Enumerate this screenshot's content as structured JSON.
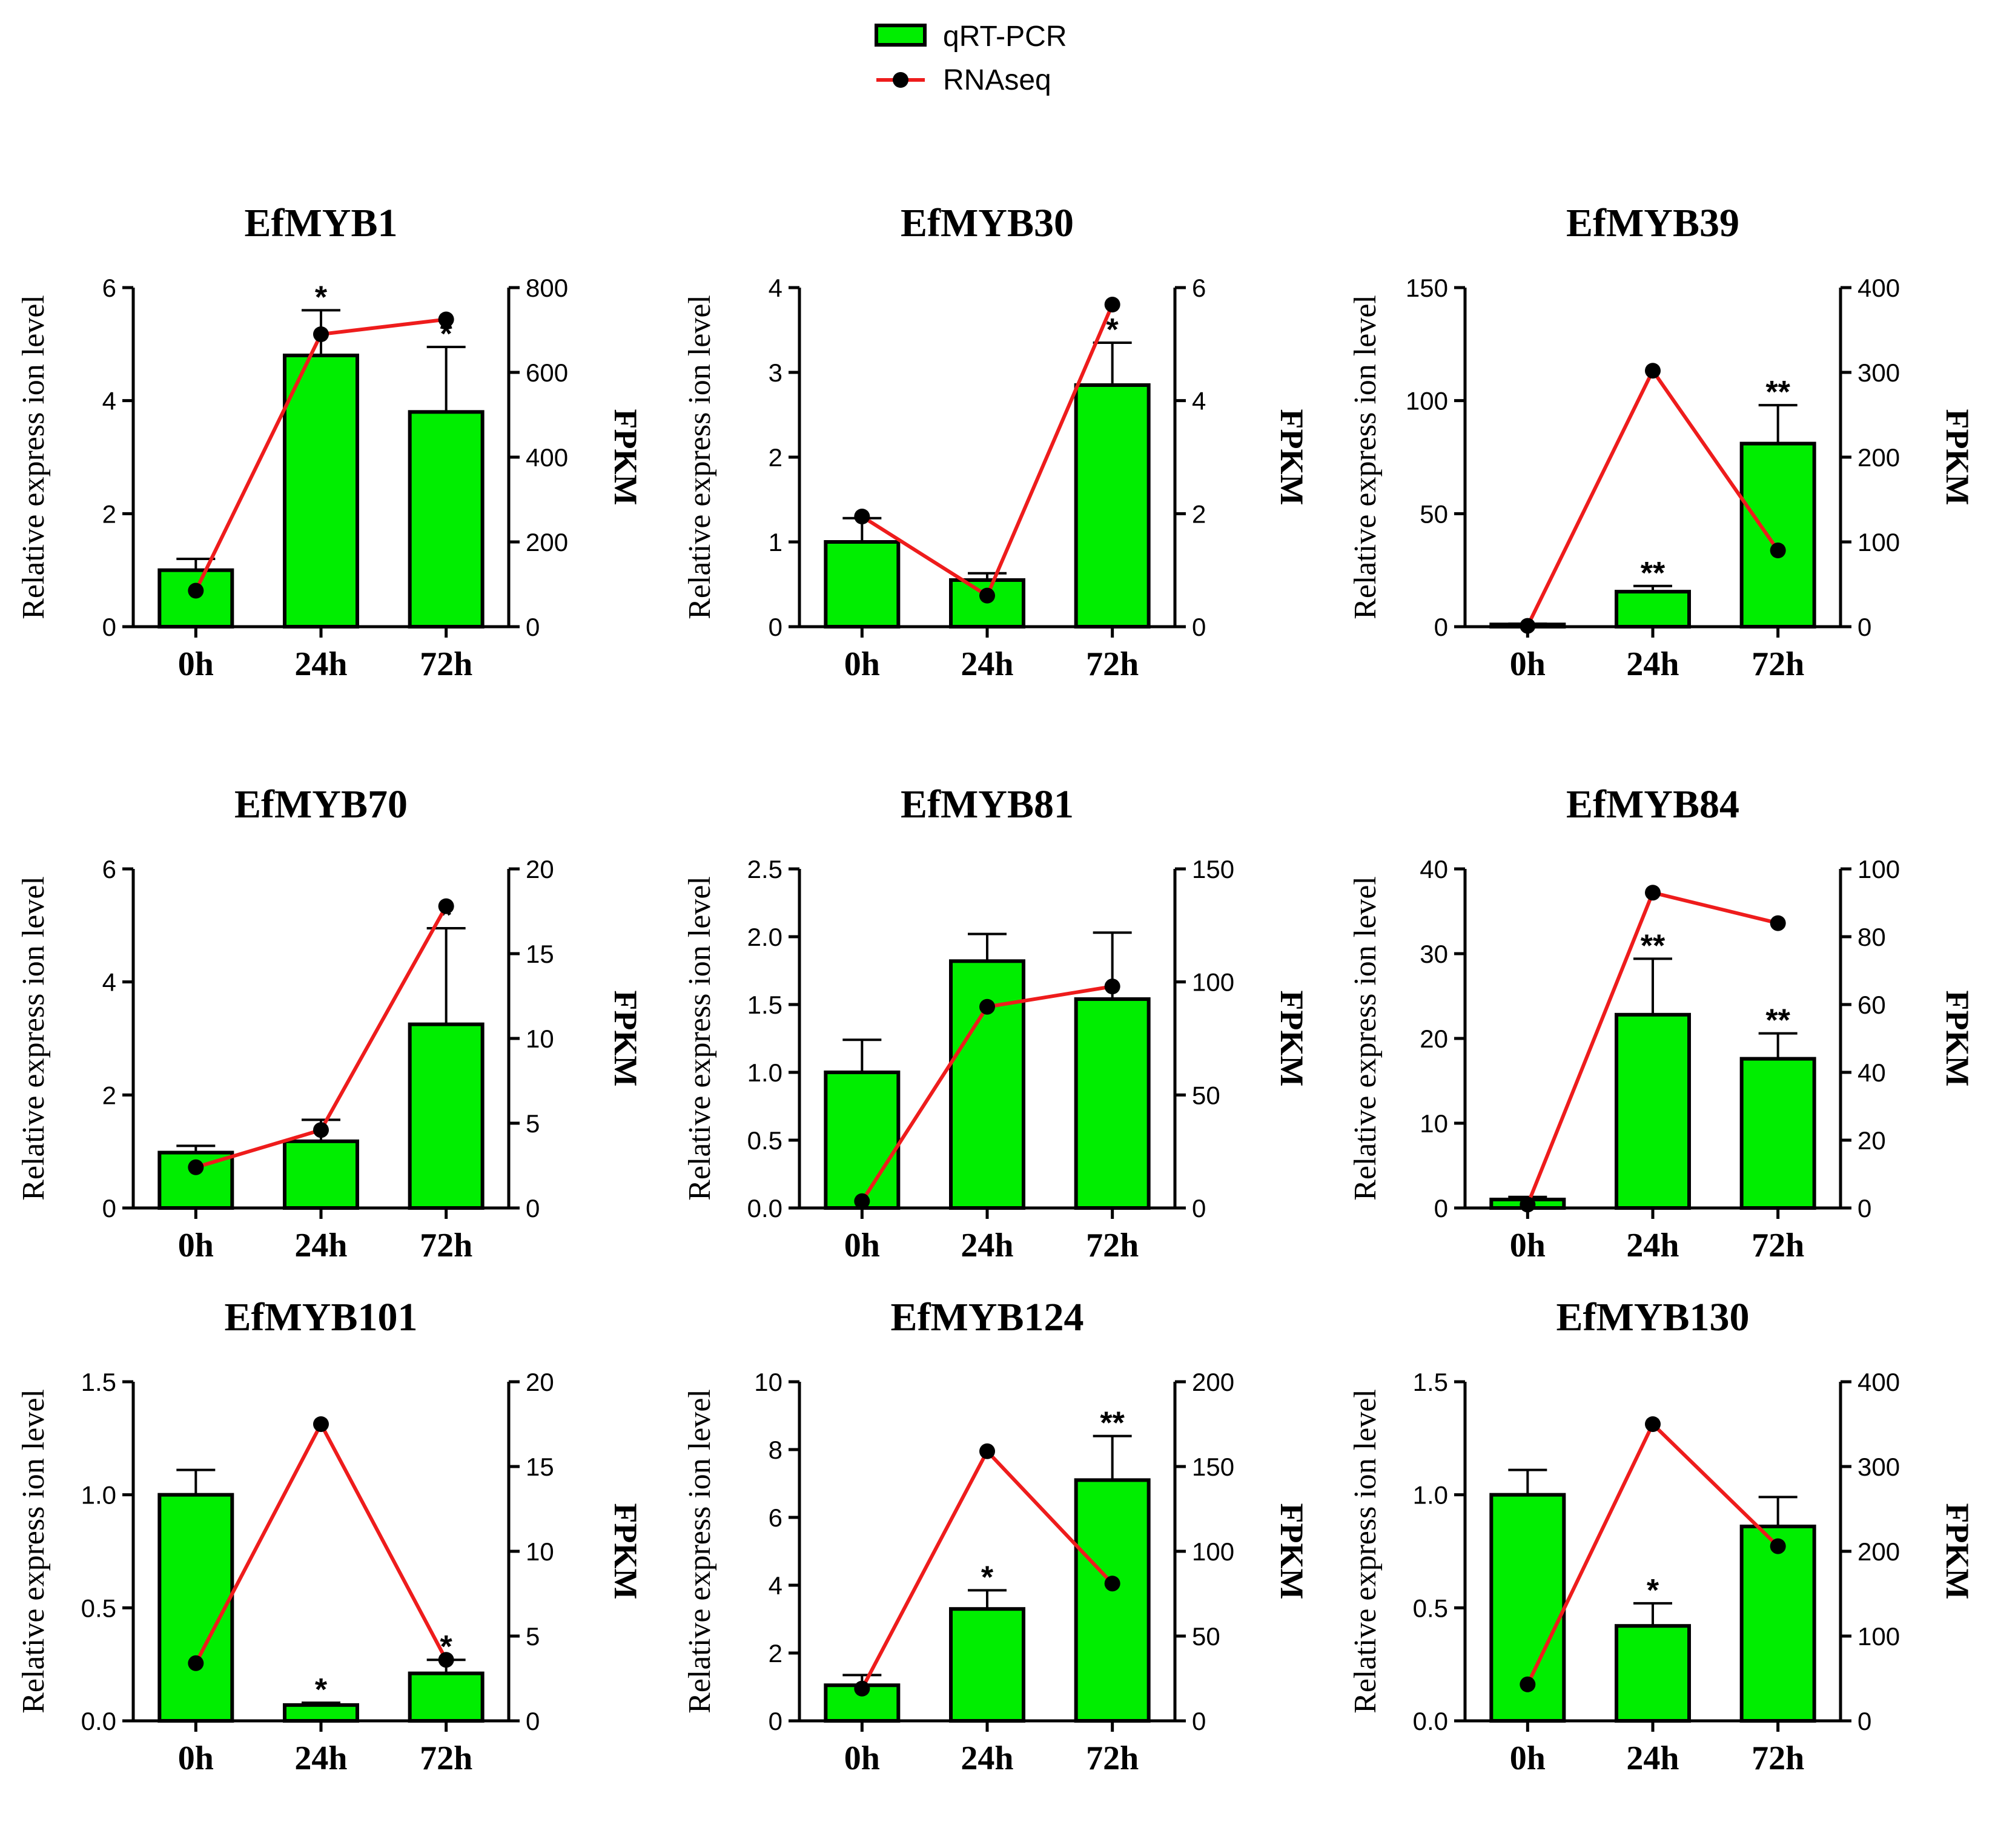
{
  "legend": {
    "bar_label": "qRT-PCR",
    "line_label": "RNAseq"
  },
  "colors": {
    "bar_fill": "#00ee00",
    "bar_stroke": "#000000",
    "line": "#ee1c1c",
    "marker": "#000000"
  },
  "chart_data": [
    {
      "type": "bar+line",
      "title": "EfMYB1",
      "categories": [
        "0h",
        "24h",
        "72h"
      ],
      "ylabel": "Relative express ion level",
      "y2label": "FPKM",
      "ylim": [
        0,
        6
      ],
      "yticks": [
        0,
        2,
        4,
        6
      ],
      "ytick_labels": [
        "0",
        "2",
        "4",
        "6"
      ],
      "y2lim": [
        0,
        800
      ],
      "y2ticks": [
        0,
        200,
        400,
        600,
        800
      ],
      "y2tick_labels": [
        "0",
        "200",
        "400",
        "600",
        "800"
      ],
      "series": [
        {
          "name": "qRT-PCR",
          "type": "bar",
          "values": [
            1.0,
            4.8,
            3.8
          ],
          "errors": [
            0.2,
            0.8,
            1.15
          ],
          "significance": [
            "",
            "*",
            "*"
          ]
        },
        {
          "name": "RNAseq",
          "type": "line",
          "axis": "right",
          "values": [
            85,
            690,
            725
          ]
        }
      ]
    },
    {
      "type": "bar+line",
      "title": "EfMYB30",
      "categories": [
        "0h",
        "24h",
        "72h"
      ],
      "ylabel": "Relative express ion level",
      "y2label": "FPKM",
      "ylim": [
        0,
        4
      ],
      "yticks": [
        0,
        1,
        2,
        3,
        4
      ],
      "ytick_labels": [
        "0",
        "1",
        "2",
        "3",
        "4"
      ],
      "y2lim": [
        0,
        6
      ],
      "y2ticks": [
        0,
        2,
        4,
        6
      ],
      "y2tick_labels": [
        "0",
        "2",
        "4",
        "6"
      ],
      "series": [
        {
          "name": "qRT-PCR",
          "type": "bar",
          "values": [
            1.0,
            0.55,
            2.85
          ],
          "errors": [
            0.28,
            0.08,
            0.5
          ],
          "significance": [
            "",
            "",
            "*"
          ]
        },
        {
          "name": "RNAseq",
          "type": "line",
          "axis": "right",
          "values": [
            1.95,
            0.55,
            5.7
          ]
        }
      ]
    },
    {
      "type": "bar+line",
      "title": "EfMYB39",
      "categories": [
        "0h",
        "24h",
        "72h"
      ],
      "ylabel": "Relative express ion level",
      "y2label": "FPKM",
      "ylim": [
        0,
        150
      ],
      "yticks": [
        0,
        50,
        100,
        150
      ],
      "ytick_labels": [
        "0",
        "50",
        "100",
        "150"
      ],
      "y2lim": [
        0,
        400
      ],
      "y2ticks": [
        0,
        100,
        200,
        300,
        400
      ],
      "y2tick_labels": [
        "0",
        "100",
        "200",
        "300",
        "400"
      ],
      "series": [
        {
          "name": "qRT-PCR",
          "type": "bar",
          "values": [
            1.0,
            15.5,
            81
          ],
          "errors": [
            0.3,
            2.5,
            17
          ],
          "significance": [
            "",
            "**",
            "**"
          ]
        },
        {
          "name": "RNAseq",
          "type": "line",
          "axis": "right",
          "values": [
            1,
            302,
            90
          ]
        }
      ]
    },
    {
      "type": "bar+line",
      "title": "EfMYB70",
      "categories": [
        "0h",
        "24h",
        "72h"
      ],
      "ylabel": "Relative express ion level",
      "y2label": "FPKM",
      "ylim": [
        0,
        6
      ],
      "yticks": [
        0,
        2,
        4,
        6
      ],
      "ytick_labels": [
        "0",
        "2",
        "4",
        "6"
      ],
      "y2lim": [
        0,
        20
      ],
      "y2ticks": [
        0,
        5,
        10,
        15,
        20
      ],
      "y2tick_labels": [
        "0",
        "5",
        "10",
        "15",
        "20"
      ],
      "series": [
        {
          "name": "qRT-PCR",
          "type": "bar",
          "values": [
            0.98,
            1.18,
            3.25
          ],
          "errors": [
            0.12,
            0.38,
            1.7
          ],
          "significance": [
            "",
            "",
            "*"
          ]
        },
        {
          "name": "RNAseq",
          "type": "line",
          "axis": "right",
          "values": [
            2.4,
            4.6,
            17.8
          ]
        }
      ]
    },
    {
      "type": "bar+line",
      "title": "EfMYB81",
      "categories": [
        "0h",
        "24h",
        "72h"
      ],
      "ylabel": "Relative express ion level",
      "y2label": "FPKM",
      "ylim": [
        0,
        2.5
      ],
      "yticks": [
        0,
        0.5,
        1.0,
        1.5,
        2.0,
        2.5
      ],
      "ytick_labels": [
        "0.0",
        "0.5",
        "1.0",
        "1.5",
        "2.0",
        "2.5"
      ],
      "y2lim": [
        0,
        150
      ],
      "y2ticks": [
        0,
        50,
        100,
        150
      ],
      "y2tick_labels": [
        "0",
        "50",
        "100",
        "150"
      ],
      "series": [
        {
          "name": "qRT-PCR",
          "type": "bar",
          "values": [
            1.0,
            1.82,
            1.54
          ],
          "errors": [
            0.24,
            0.2,
            0.49
          ],
          "significance": [
            "",
            "",
            ""
          ]
        },
        {
          "name": "RNAseq",
          "type": "line",
          "axis": "right",
          "values": [
            3,
            89,
            98
          ]
        }
      ]
    },
    {
      "type": "bar+line",
      "title": "EfMYB84",
      "categories": [
        "0h",
        "24h",
        "72h"
      ],
      "ylabel": "Relative express ion level",
      "y2label": "FPKM",
      "ylim": [
        0,
        40
      ],
      "yticks": [
        0,
        10,
        20,
        30,
        40
      ],
      "ytick_labels": [
        "0",
        "10",
        "20",
        "30",
        "40"
      ],
      "y2lim": [
        0,
        100
      ],
      "y2ticks": [
        0,
        20,
        40,
        60,
        80,
        100
      ],
      "y2tick_labels": [
        "0",
        "20",
        "40",
        "60",
        "80",
        "100"
      ],
      "series": [
        {
          "name": "qRT-PCR",
          "type": "bar",
          "values": [
            1.0,
            22.8,
            17.6
          ],
          "errors": [
            0.3,
            6.6,
            3.0
          ],
          "significance": [
            "",
            "**",
            "**"
          ]
        },
        {
          "name": "RNAseq",
          "type": "line",
          "axis": "right",
          "values": [
            1,
            93,
            84
          ]
        }
      ]
    },
    {
      "type": "bar+line",
      "title": "EfMYB101",
      "categories": [
        "0h",
        "24h",
        "72h"
      ],
      "ylabel": "Relative express ion level",
      "y2label": "FPKM",
      "ylim": [
        0,
        1.5
      ],
      "yticks": [
        0,
        0.5,
        1.0,
        1.5
      ],
      "ytick_labels": [
        "0.0",
        "0.5",
        "1.0",
        "1.5"
      ],
      "y2lim": [
        0,
        20
      ],
      "y2ticks": [
        0,
        5,
        10,
        15,
        20
      ],
      "y2tick_labels": [
        "0",
        "5",
        "10",
        "15",
        "20"
      ],
      "series": [
        {
          "name": "qRT-PCR",
          "type": "bar",
          "values": [
            1.0,
            0.07,
            0.21
          ],
          "errors": [
            0.11,
            0.01,
            0.06
          ],
          "significance": [
            "",
            "*",
            "*"
          ]
        },
        {
          "name": "RNAseq",
          "type": "line",
          "axis": "right",
          "values": [
            3.4,
            17.5,
            3.6
          ]
        }
      ]
    },
    {
      "type": "bar+line",
      "title": "EfMYB124",
      "categories": [
        "0h",
        "24h",
        "72h"
      ],
      "ylabel": "Relative express ion level",
      "y2label": "FPKM",
      "ylim": [
        0,
        10
      ],
      "yticks": [
        0,
        2,
        4,
        6,
        8,
        10
      ],
      "ytick_labels": [
        "0",
        "2",
        "4",
        "6",
        "8",
        "10"
      ],
      "y2lim": [
        0,
        200
      ],
      "y2ticks": [
        0,
        50,
        100,
        150,
        200
      ],
      "y2tick_labels": [
        "0",
        "50",
        "100",
        "150",
        "200"
      ],
      "series": [
        {
          "name": "qRT-PCR",
          "type": "bar",
          "values": [
            1.05,
            3.3,
            7.1
          ],
          "errors": [
            0.3,
            0.55,
            1.3
          ],
          "significance": [
            "",
            "*",
            "**"
          ]
        },
        {
          "name": "RNAseq",
          "type": "line",
          "axis": "right",
          "values": [
            19,
            159,
            81
          ]
        }
      ]
    },
    {
      "type": "bar+line",
      "title": "EfMYB130",
      "categories": [
        "0h",
        "24h",
        "72h"
      ],
      "ylabel": "Relative express ion level",
      "y2label": "FPKM",
      "ylim": [
        0,
        1.5
      ],
      "yticks": [
        0,
        0.5,
        1.0,
        1.5
      ],
      "ytick_labels": [
        "0.0",
        "0.5",
        "1.0",
        "1.5"
      ],
      "y2lim": [
        0,
        400
      ],
      "y2ticks": [
        0,
        100,
        200,
        300,
        400
      ],
      "y2tick_labels": [
        "0",
        "100",
        "200",
        "300",
        "400"
      ],
      "series": [
        {
          "name": "qRT-PCR",
          "type": "bar",
          "values": [
            1.0,
            0.42,
            0.86
          ],
          "errors": [
            0.11,
            0.1,
            0.13
          ],
          "significance": [
            "",
            "*",
            ""
          ]
        },
        {
          "name": "RNAseq",
          "type": "line",
          "axis": "right",
          "values": [
            43,
            350,
            206
          ]
        }
      ]
    }
  ]
}
